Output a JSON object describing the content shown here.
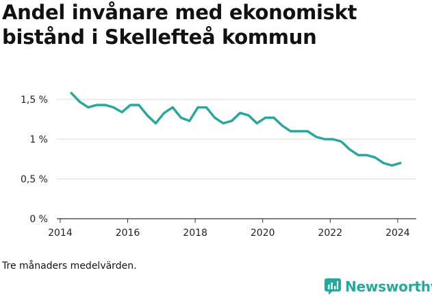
{
  "title": "Andel invånare med ekonomiskt bistånd i Skellefteå kommun",
  "note": "Tre månaders medelvärden.",
  "brand": {
    "name": "Newsworthy",
    "logo_icon": "newsworthy-chart-logo-icon",
    "color": "#29a79b"
  },
  "chart_data": {
    "type": "line",
    "title": "Andel invånare med ekonomiskt bistånd i Skellefteå kommun",
    "xlabel": "",
    "ylabel": "",
    "xlim": [
      2013.9,
      2024.55
    ],
    "ylim": [
      0,
      1.5
    ],
    "grid": true,
    "legend": "none",
    "x_ticks": [
      {
        "value": 2014,
        "label": "2014"
      },
      {
        "value": 2016,
        "label": "2016"
      },
      {
        "value": 2018,
        "label": "2018"
      },
      {
        "value": 2020,
        "label": "2020"
      },
      {
        "value": 2022,
        "label": "2022"
      },
      {
        "value": 2024,
        "label": "2024"
      }
    ],
    "y_ticks": [
      {
        "value": 0,
        "label": "0 %"
      },
      {
        "value": 0.5,
        "label": "0,5 %"
      },
      {
        "value": 1,
        "label": "1 %"
      },
      {
        "value": 1.5,
        "label": "1,5 %"
      }
    ],
    "series": [
      {
        "color": "#29a79b",
        "x": [
          2014.33,
          2014.58,
          2014.83,
          2015.08,
          2015.33,
          2015.58,
          2015.83,
          2016.08,
          2016.33,
          2016.58,
          2016.83,
          2017.08,
          2017.33,
          2017.58,
          2017.83,
          2018.08,
          2018.33,
          2018.58,
          2018.83,
          2019.08,
          2019.33,
          2019.58,
          2019.83,
          2020.08,
          2020.33,
          2020.58,
          2020.83,
          2021.08,
          2021.33,
          2021.58,
          2021.83,
          2022.08,
          2022.33,
          2022.58,
          2022.83,
          2023.08,
          2023.33,
          2023.58,
          2023.83,
          2024.08
        ],
        "y": [
          1.58,
          1.47,
          1.4,
          1.43,
          1.43,
          1.4,
          1.34,
          1.43,
          1.43,
          1.3,
          1.2,
          1.33,
          1.4,
          1.27,
          1.23,
          1.4,
          1.4,
          1.27,
          1.2,
          1.23,
          1.33,
          1.3,
          1.2,
          1.27,
          1.27,
          1.17,
          1.1,
          1.1,
          1.1,
          1.03,
          1.0,
          1.0,
          0.97,
          0.87,
          0.8,
          0.8,
          0.77,
          0.7,
          0.67,
          0.7
        ]
      }
    ]
  }
}
